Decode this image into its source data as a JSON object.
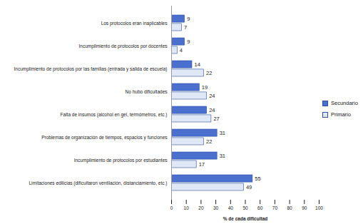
{
  "chart_data": {
    "type": "bar",
    "orientation": "horizontal",
    "categories": [
      "Los protocolos eran inaplicables",
      "Incumplimiento de protocolos por docentes",
      "Incumplimiento de protocolos por las familias (entrada y salida de escuela)",
      "No hubo dificultades",
      "Falta de insumos (alcohol en gel, termómetros, etc.)",
      "Problemas de organización de tiempos, espacios y funciones",
      "Incumplimiento de protocolos por estudiantes",
      "Limitaciones edilicias (dificultaron ventilación, distanciamiento, etc.)"
    ],
    "series": [
      {
        "name": "Secundario",
        "color": "#4a6fcf",
        "values": [
          9,
          9,
          14,
          19,
          24,
          31,
          31,
          55
        ]
      },
      {
        "name": "Primario",
        "color": "#dfe8f7",
        "values": [
          7,
          4,
          22,
          24,
          27,
          22,
          17,
          49
        ]
      }
    ],
    "xlabel": "% de cada dificultad",
    "xlim": [
      0,
      100
    ],
    "xticks": [
      0,
      10,
      20,
      30,
      40,
      50,
      60,
      70,
      80,
      90,
      100
    ],
    "grid": false,
    "legend": "right",
    "data_labels": true
  }
}
